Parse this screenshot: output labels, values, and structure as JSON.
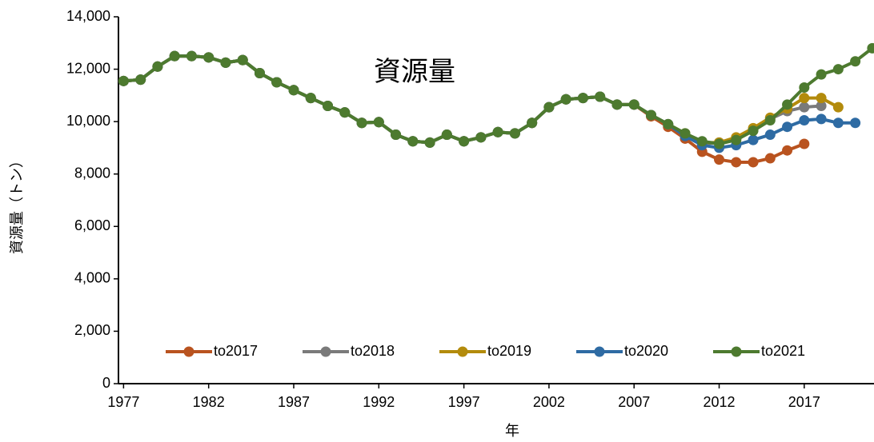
{
  "chart_data": {
    "type": "line",
    "annotation": "資源量",
    "xlabel": "年",
    "ylabel": "資源量（トン）",
    "x": [
      1977,
      1978,
      1979,
      1980,
      1981,
      1982,
      1983,
      1984,
      1985,
      1986,
      1987,
      1988,
      1989,
      1990,
      1991,
      1992,
      1993,
      1994,
      1995,
      1996,
      1997,
      1998,
      1999,
      2000,
      2001,
      2002,
      2003,
      2004,
      2005,
      2006,
      2007,
      2008,
      2009,
      2010,
      2011,
      2012,
      2013,
      2014,
      2015,
      2016,
      2017,
      2018,
      2019,
      2020,
      2021
    ],
    "xlim": [
      1976.7,
      2021.1
    ],
    "xticks": [
      1977,
      1982,
      1987,
      1992,
      1997,
      2002,
      2007,
      2012,
      2017
    ],
    "ylim": [
      0,
      14000
    ],
    "yticks": [
      0,
      {
        "value": 2000,
        "label": "2,000"
      },
      {
        "value": 4000,
        "label": "4,000"
      },
      {
        "value": 6000,
        "label": "6,000"
      },
      {
        "value": 8000,
        "label": "8,000"
      },
      {
        "value": 10000,
        "label": "10,000"
      },
      {
        "value": 12000,
        "label": "12,000"
      },
      {
        "value": 14000,
        "label": "14,000"
      }
    ],
    "legend": "bottom",
    "series": [
      {
        "name": "to2017",
        "color": "#b9531f",
        "values": [
          11550,
          11600,
          12100,
          12500,
          12500,
          12450,
          12250,
          12350,
          11850,
          11500,
          11200,
          10900,
          10600,
          10350,
          9950,
          9980,
          9500,
          9250,
          9200,
          9500,
          9250,
          9400,
          9600,
          9550,
          9950,
          10550,
          10850,
          10900,
          10950,
          10650,
          10650,
          10200,
          9800,
          9350,
          8850,
          8550,
          8450,
          8450,
          8600,
          8900,
          9150,
          null,
          null,
          null,
          null
        ]
      },
      {
        "name": "to2018",
        "color": "#7a7a7a",
        "values": [
          11550,
          11600,
          12100,
          12500,
          12500,
          12450,
          12250,
          12350,
          11850,
          11500,
          11200,
          10900,
          10600,
          10350,
          9950,
          9980,
          9500,
          9250,
          9200,
          9500,
          9250,
          9400,
          9600,
          9550,
          9950,
          10550,
          10850,
          10900,
          10950,
          10650,
          10650,
          10250,
          9900,
          9500,
          9150,
          9200,
          9350,
          9700,
          10100,
          10400,
          10550,
          10600,
          null,
          null,
          null
        ]
      },
      {
        "name": "to2019",
        "color": "#b38b0c",
        "values": [
          11550,
          11600,
          12100,
          12500,
          12500,
          12450,
          12250,
          12350,
          11850,
          11500,
          11200,
          10900,
          10600,
          10350,
          9950,
          9980,
          9500,
          9250,
          9200,
          9500,
          9250,
          9400,
          9600,
          9550,
          9950,
          10550,
          10850,
          10900,
          10950,
          10650,
          10650,
          10250,
          9900,
          9550,
          9200,
          9200,
          9400,
          9750,
          10150,
          10500,
          10900,
          10900,
          10550,
          null,
          null
        ]
      },
      {
        "name": "to2020",
        "color": "#2e6ba3",
        "values": [
          11550,
          11600,
          12100,
          12500,
          12500,
          12450,
          12250,
          12350,
          11850,
          11500,
          11200,
          10900,
          10600,
          10350,
          9950,
          9980,
          9500,
          9250,
          9200,
          9500,
          9250,
          9400,
          9600,
          9550,
          9950,
          10550,
          10850,
          10900,
          10950,
          10650,
          10650,
          10250,
          9900,
          9450,
          9100,
          9000,
          9100,
          9300,
          9500,
          9800,
          10050,
          10100,
          9950,
          9950,
          null
        ]
      },
      {
        "name": "to2021",
        "color": "#4d7a2f",
        "values": [
          11550,
          11600,
          12100,
          12500,
          12500,
          12450,
          12250,
          12350,
          11850,
          11500,
          11200,
          10900,
          10600,
          10350,
          9950,
          9980,
          9500,
          9250,
          9200,
          9500,
          9250,
          9400,
          9600,
          9550,
          9950,
          10550,
          10850,
          10900,
          10950,
          10650,
          10650,
          10250,
          9900,
          9550,
          9250,
          9150,
          9300,
          9650,
          10050,
          10650,
          11300,
          11800,
          12000,
          12300,
          12800
        ]
      }
    ]
  }
}
